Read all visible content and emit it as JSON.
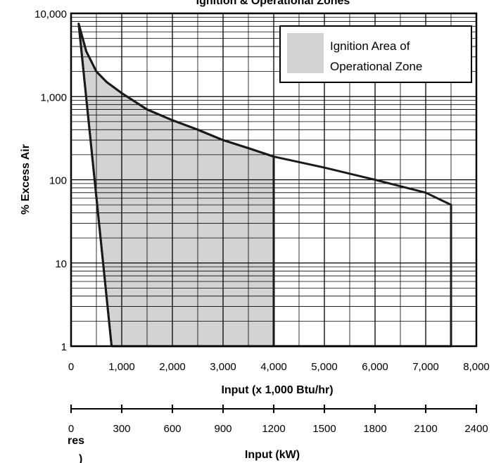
{
  "chart_data": {
    "type": "area",
    "title": "Ignition & Operational Zones",
    "xlabel": "Input (x 1,000 Btu/hr)",
    "ylabel": "% Excess Air",
    "x2label": "Input (kW)",
    "corner_fragment": [
      "res",
      ")"
    ],
    "x_scale": "linear",
    "y_scale": "log",
    "xlim": [
      0,
      8000
    ],
    "ylim": [
      1,
      10000
    ],
    "x_ticks": [
      0,
      1000,
      2000,
      3000,
      4000,
      5000,
      6000,
      7000,
      8000
    ],
    "x_tick_labels": [
      "0",
      "1,000",
      "2,000",
      "3,000",
      "4,000",
      "5,000",
      "6,000",
      "7,000",
      "8,000"
    ],
    "y_ticks": [
      1,
      10,
      100,
      1000,
      10000
    ],
    "y_tick_labels": [
      "1",
      "10",
      "100",
      "1,000",
      "10,000"
    ],
    "x2_ticks": [
      0,
      300,
      600,
      900,
      1200,
      1500,
      1800,
      2100,
      2400
    ],
    "x2_tick_labels": [
      "0",
      "300",
      "600",
      "900",
      "1200",
      "1500",
      "1800",
      "2100",
      "2400"
    ],
    "grid": true,
    "legend": {
      "position": "top-right",
      "label": "Ignition Area of Operational Zone",
      "lines": [
        "Ignition Area of",
        "Operational Zone"
      ],
      "color": "#d3d3d3"
    },
    "series": [
      {
        "name": "Operational Zone",
        "points": [
          [
            800,
            1
          ],
          [
            150,
            7500
          ],
          [
            300,
            3500
          ],
          [
            500,
            2000
          ],
          [
            700,
            1500
          ],
          [
            1000,
            1100
          ],
          [
            1500,
            700
          ],
          [
            2000,
            520
          ],
          [
            2500,
            400
          ],
          [
            3000,
            300
          ],
          [
            3500,
            240
          ],
          [
            4000,
            190
          ],
          [
            5000,
            140
          ],
          [
            6000,
            100
          ],
          [
            7000,
            70
          ],
          [
            7500,
            50
          ],
          [
            7500,
            1
          ],
          [
            800,
            1
          ]
        ],
        "color": "#1a1a1a"
      },
      {
        "name": "Ignition Area of Operational Zone",
        "points": [
          [
            800,
            1
          ],
          [
            150,
            7500
          ],
          [
            300,
            3500
          ],
          [
            500,
            2000
          ],
          [
            700,
            1500
          ],
          [
            1000,
            1100
          ],
          [
            1500,
            700
          ],
          [
            2000,
            520
          ],
          [
            2500,
            400
          ],
          [
            3000,
            300
          ],
          [
            3500,
            240
          ],
          [
            4000,
            190
          ],
          [
            4000,
            1
          ],
          [
            800,
            1
          ]
        ],
        "color": "#d3d3d3"
      }
    ]
  }
}
